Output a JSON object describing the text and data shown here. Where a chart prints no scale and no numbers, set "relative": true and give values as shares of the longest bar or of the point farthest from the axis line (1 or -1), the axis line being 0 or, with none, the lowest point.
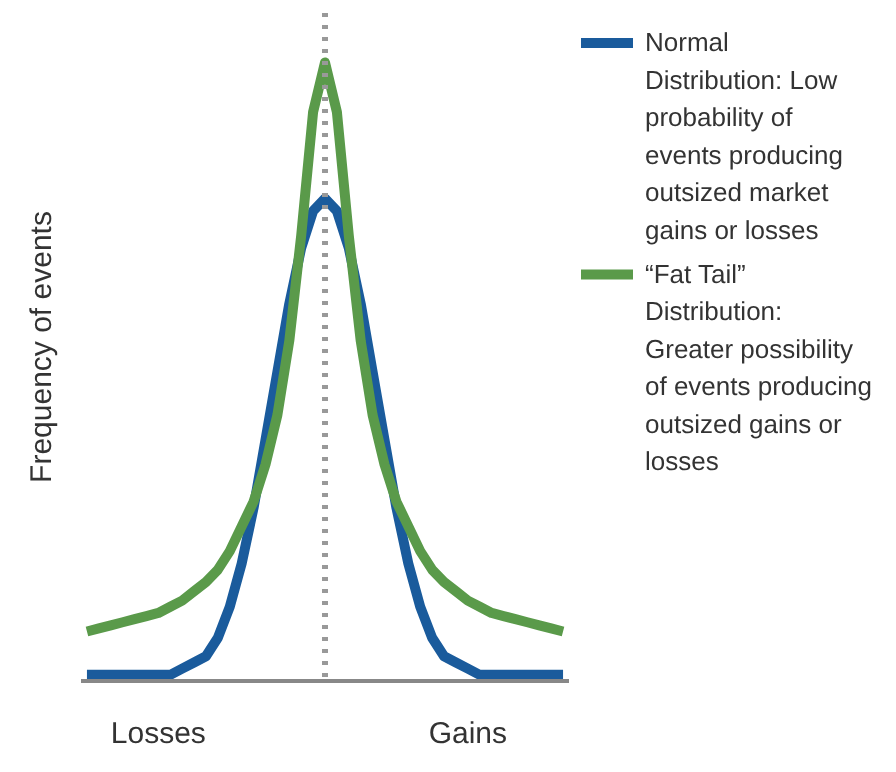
{
  "chart_data": {
    "type": "line",
    "relative": true,
    "ylabel": "Frequency of events",
    "categories": [
      null,
      null,
      null,
      null,
      null,
      null,
      "Losses",
      null,
      null,
      null,
      null,
      null,
      null,
      null,
      null,
      null,
      null,
      null,
      null,
      null,
      null,
      null,
      null,
      null,
      null,
      null,
      null,
      null,
      null,
      null,
      null,
      null,
      "Gains",
      null,
      null,
      null,
      null,
      null,
      null,
      null,
      null
    ],
    "grid": false,
    "legend": "right",
    "line_style": "solid",
    "series": [
      {
        "name": "Normal Distribution: Low probability of events producing outsized market gains or losses",
        "color": "#1a5b9c",
        "values": [
          0.01,
          0.01,
          0.01,
          0.01,
          0.01,
          0.01,
          0.01,
          0.01,
          0.02,
          0.03,
          0.04,
          0.07,
          0.12,
          0.19,
          0.28,
          0.39,
          0.5,
          0.61,
          0.7,
          0.76,
          0.78,
          0.76,
          0.7,
          0.61,
          0.5,
          0.39,
          0.28,
          0.19,
          0.12,
          0.07,
          0.04,
          0.03,
          0.02,
          0.01,
          0.01,
          0.01,
          0.01,
          0.01,
          0.01,
          0.01,
          0.01
        ]
      },
      {
        "name": "“Fat Tail” Distribution: Greater possibility of events producing outsized gains or losses",
        "color": "#5a9a4a",
        "values": [
          0.08,
          0.085,
          0.09,
          0.095,
          0.1,
          0.105,
          0.11,
          0.12,
          0.13,
          0.145,
          0.16,
          0.18,
          0.21,
          0.25,
          0.29,
          0.35,
          0.43,
          0.55,
          0.72,
          0.92,
          1.0,
          0.92,
          0.72,
          0.55,
          0.43,
          0.35,
          0.29,
          0.25,
          0.21,
          0.18,
          0.16,
          0.145,
          0.13,
          0.12,
          0.11,
          0.105,
          0.1,
          0.095,
          0.09,
          0.085,
          0.08
        ]
      }
    ]
  }
}
